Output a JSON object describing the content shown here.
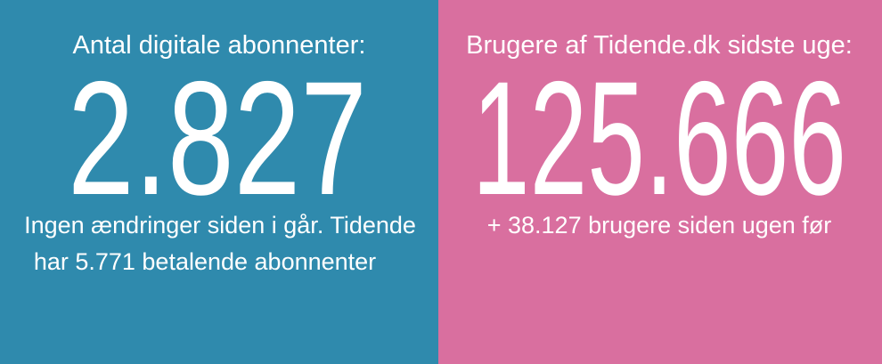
{
  "panels": [
    {
      "label": "Antal digitale abonnenter:",
      "value": "2.827",
      "note": [
        "Ingen ændringer siden i går. Tidende",
        "har 5.771 betalende abonnenter"
      ]
    },
    {
      "label": "Brugere af Tidende.dk sidste uge:",
      "value": "125.666",
      "note": [
        "+ 38.127 brugere siden ugen før"
      ]
    }
  ]
}
